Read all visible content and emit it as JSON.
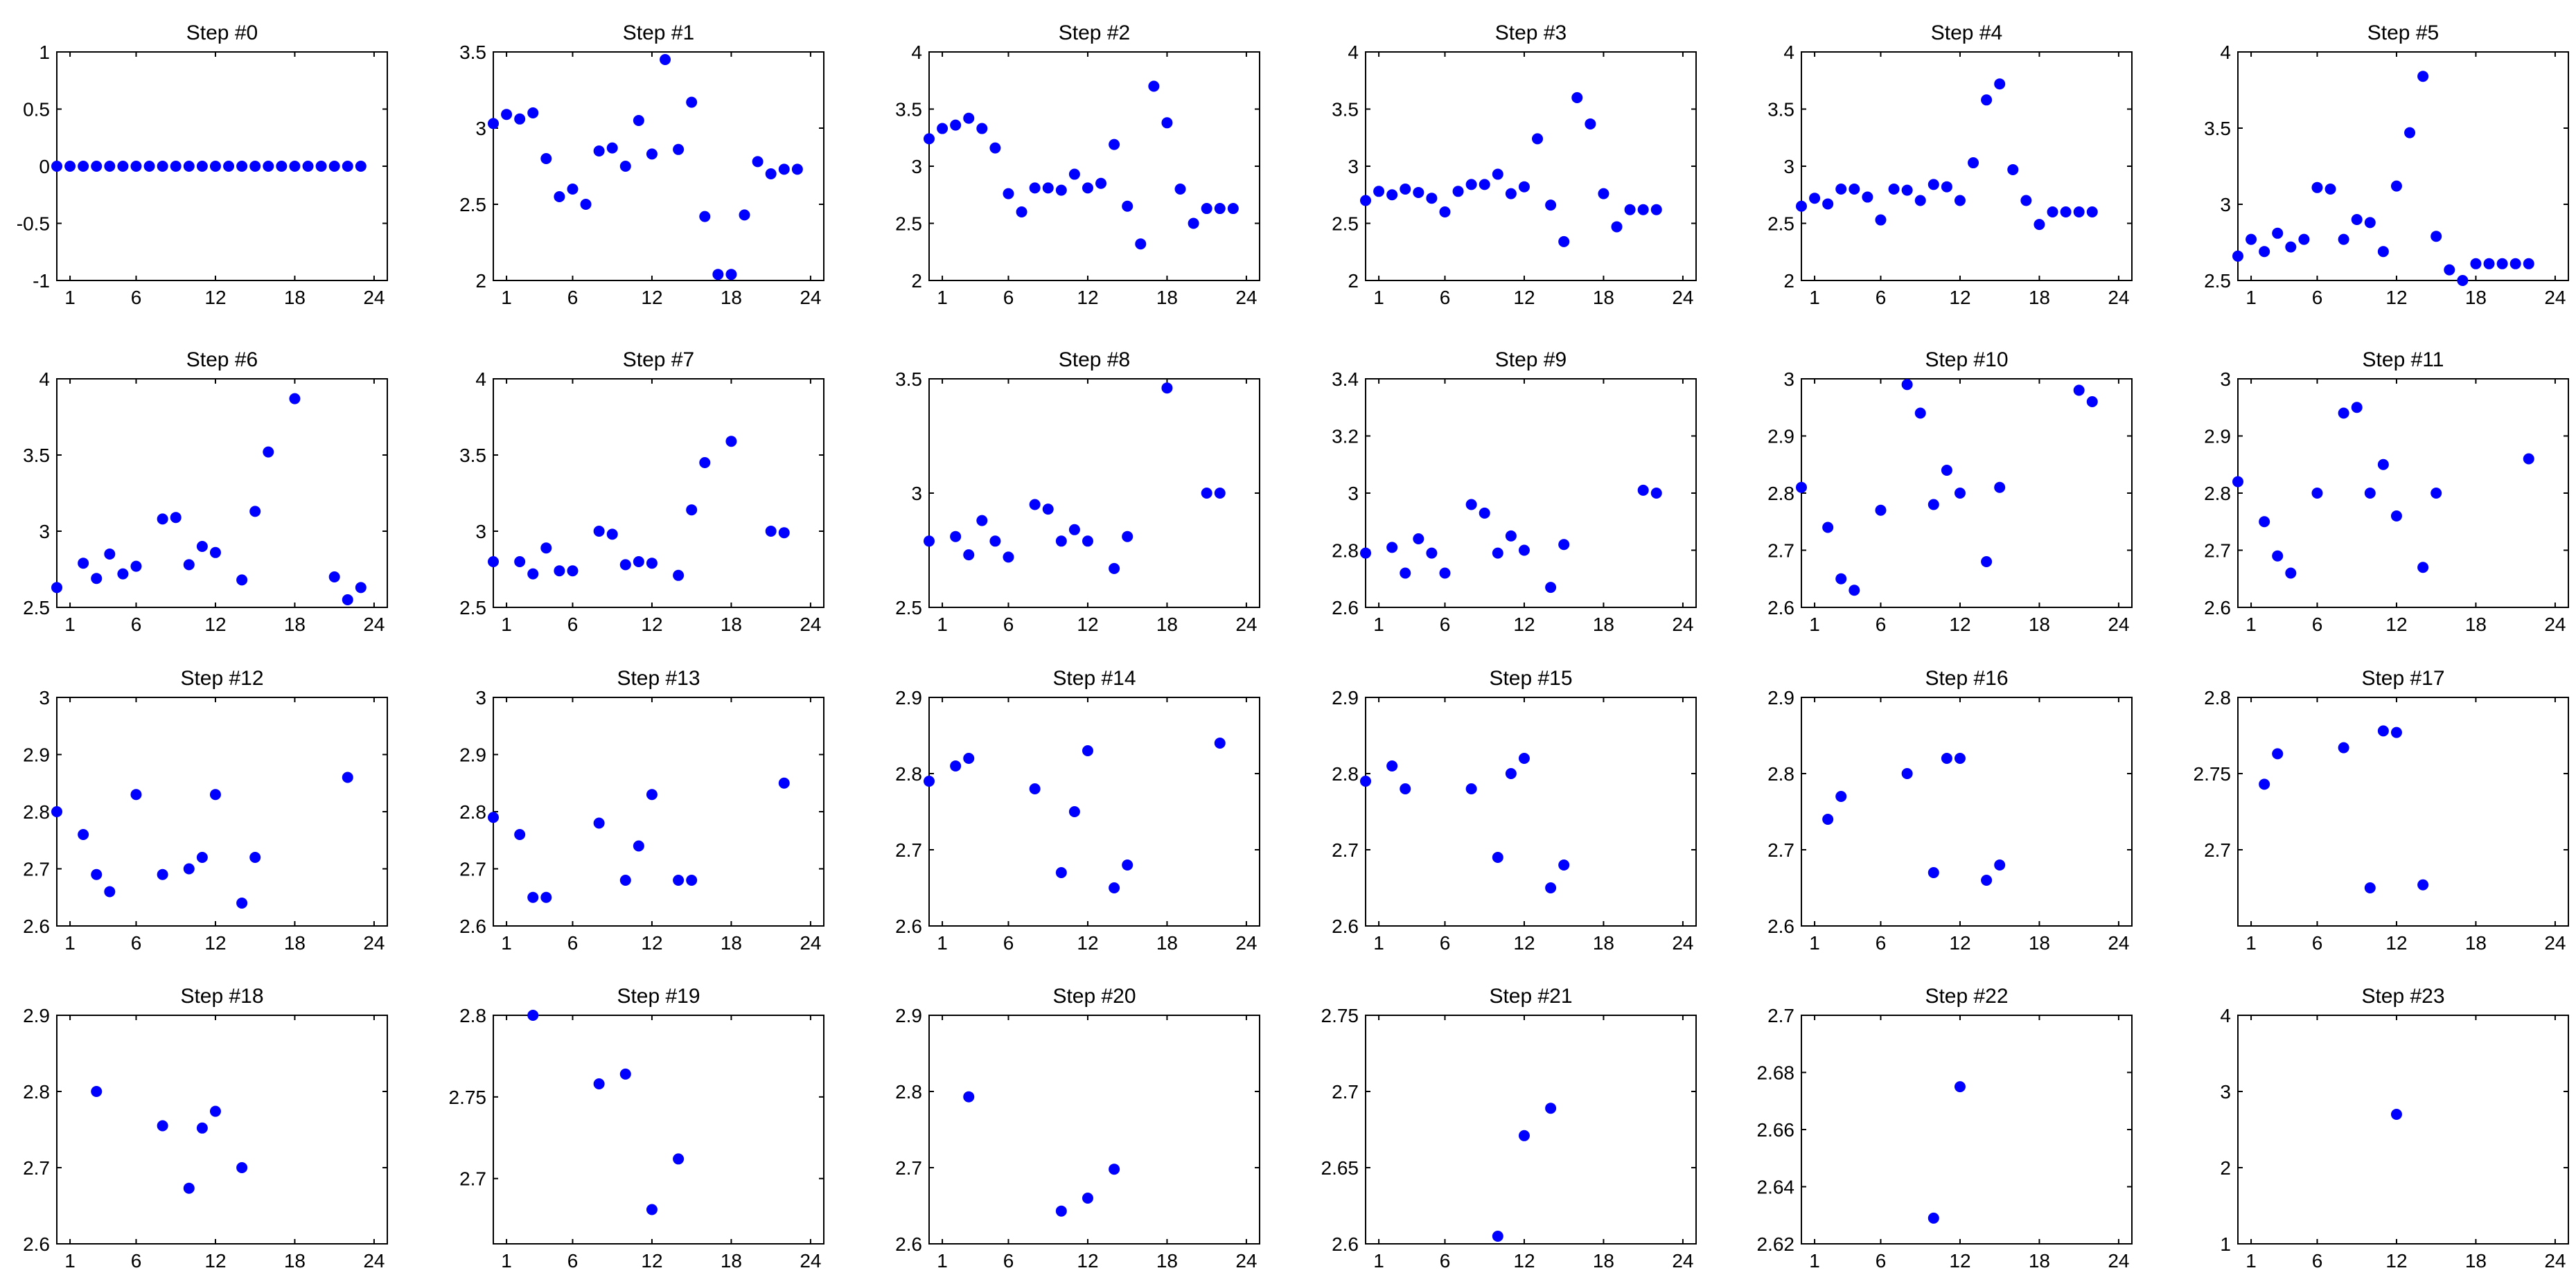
{
  "figure": {
    "rows": 4,
    "cols": 6,
    "marker_color": "#0000ff",
    "axis_color": "#000000",
    "background": "#ffffff"
  },
  "chart_data": [
    {
      "type": "scatter",
      "title": "Step #0",
      "xlim": [
        0,
        25
      ],
      "ylim": [
        -1,
        1
      ],
      "xticks": [
        "1",
        "6",
        "12",
        "18",
        "24"
      ],
      "yticks": [
        "-1",
        "-0.5",
        "0",
        "0.5",
        "1"
      ],
      "xlabel": "",
      "ylabel": "",
      "x": [
        0,
        1,
        2,
        3,
        4,
        5,
        6,
        7,
        8,
        9,
        10,
        11,
        12,
        13,
        14,
        15,
        16,
        17,
        18,
        19,
        20,
        21,
        22,
        23
      ],
      "y": [
        0,
        0,
        0,
        0,
        0,
        0,
        0,
        0,
        0,
        0,
        0,
        0,
        0,
        0,
        0,
        0,
        0,
        0,
        0,
        0,
        0,
        0,
        0,
        0
      ]
    },
    {
      "type": "scatter",
      "title": "Step #1",
      "xlim": [
        0,
        25
      ],
      "ylim": [
        2,
        3.5
      ],
      "xticks": [
        "1",
        "6",
        "12",
        "18",
        "24"
      ],
      "yticks": [
        "2",
        "2.5",
        "3",
        "3.5"
      ],
      "xlabel": "",
      "ylabel": "",
      "x": [
        0,
        1,
        2,
        3,
        4,
        5,
        6,
        7,
        8,
        9,
        10,
        11,
        12,
        13,
        14,
        15,
        16,
        17,
        18,
        19,
        20,
        21,
        22,
        23
      ],
      "y": [
        3.03,
        3.09,
        3.06,
        3.1,
        2.8,
        2.55,
        2.6,
        2.5,
        2.85,
        2.87,
        2.75,
        3.05,
        2.83,
        3.45,
        2.86,
        3.17,
        2.42,
        2.04,
        2.04,
        2.43,
        2.78,
        2.7,
        2.73,
        2.73
      ]
    },
    {
      "type": "scatter",
      "title": "Step #2",
      "xlim": [
        0,
        25
      ],
      "ylim": [
        2,
        4
      ],
      "xticks": [
        "1",
        "6",
        "12",
        "18",
        "24"
      ],
      "yticks": [
        "2",
        "2.5",
        "3",
        "3.5",
        "4"
      ],
      "xlabel": "",
      "ylabel": "",
      "x": [
        0,
        1,
        2,
        3,
        4,
        5,
        6,
        7,
        8,
        9,
        10,
        11,
        12,
        13,
        14,
        15,
        16,
        17,
        18,
        19,
        20,
        21,
        22,
        23
      ],
      "y": [
        3.24,
        3.33,
        3.36,
        3.42,
        3.33,
        3.16,
        2.76,
        2.6,
        2.81,
        2.81,
        2.79,
        2.93,
        2.81,
        2.85,
        3.19,
        2.65,
        2.32,
        3.7,
        3.38,
        2.8,
        2.5,
        2.63,
        2.63,
        2.63
      ]
    },
    {
      "type": "scatter",
      "title": "Step #3",
      "xlim": [
        0,
        25
      ],
      "ylim": [
        2,
        4
      ],
      "xticks": [
        "1",
        "6",
        "12",
        "18",
        "24"
      ],
      "yticks": [
        "2",
        "2.5",
        "3",
        "3.5",
        "4"
      ],
      "xlabel": "",
      "ylabel": "",
      "x": [
        0,
        1,
        2,
        3,
        4,
        5,
        6,
        7,
        8,
        9,
        10,
        11,
        12,
        13,
        14,
        15,
        16,
        17,
        18,
        19,
        20,
        21,
        22
      ],
      "y": [
        2.7,
        2.78,
        2.75,
        2.8,
        2.77,
        2.72,
        2.6,
        2.78,
        2.84,
        2.84,
        2.93,
        2.76,
        2.82,
        3.24,
        2.66,
        2.34,
        3.6,
        3.37,
        2.76,
        2.47,
        2.62,
        2.62,
        2.62
      ]
    },
    {
      "type": "scatter",
      "title": "Step #4",
      "xlim": [
        0,
        25
      ],
      "ylim": [
        2,
        4
      ],
      "xticks": [
        "1",
        "6",
        "12",
        "18",
        "24"
      ],
      "yticks": [
        "2",
        "2.5",
        "3",
        "3.5",
        "4"
      ],
      "xlabel": "",
      "ylabel": "",
      "x": [
        0,
        1,
        2,
        3,
        4,
        5,
        6,
        7,
        8,
        9,
        10,
        11,
        12,
        13,
        14,
        15,
        16,
        17,
        18,
        19,
        20,
        21,
        22
      ],
      "y": [
        2.65,
        2.72,
        2.67,
        2.8,
        2.8,
        2.73,
        2.53,
        2.8,
        2.79,
        2.7,
        2.84,
        2.82,
        2.7,
        3.03,
        3.58,
        3.72,
        2.97,
        2.7,
        2.49,
        2.6,
        2.6,
        2.6,
        2.6
      ]
    },
    {
      "type": "scatter",
      "title": "Step #5",
      "xlim": [
        0,
        25
      ],
      "ylim": [
        2.5,
        4
      ],
      "xticks": [
        "1",
        "6",
        "12",
        "18",
        "24"
      ],
      "yticks": [
        "2.5",
        "3",
        "3.5",
        "4"
      ],
      "xlabel": "",
      "ylabel": "",
      "x": [
        0,
        1,
        2,
        3,
        4,
        5,
        6,
        7,
        8,
        9,
        10,
        11,
        12,
        13,
        14,
        15,
        16,
        17,
        18,
        19,
        20,
        21,
        22
      ],
      "y": [
        2.66,
        2.77,
        2.69,
        2.81,
        2.72,
        2.77,
        3.11,
        3.1,
        2.77,
        2.9,
        2.88,
        2.69,
        3.12,
        3.47,
        3.84,
        2.79,
        2.57,
        2.5,
        2.61,
        2.61,
        2.61,
        2.61,
        2.61
      ]
    },
    {
      "type": "scatter",
      "title": "Step #6",
      "xlim": [
        0,
        25
      ],
      "ylim": [
        2.5,
        4
      ],
      "xticks": [
        "1",
        "6",
        "12",
        "18",
        "24"
      ],
      "yticks": [
        "2.5",
        "3",
        "3.5",
        "4"
      ],
      "xlabel": "",
      "ylabel": "",
      "x": [
        0,
        2,
        3,
        4,
        5,
        6,
        8,
        9,
        10,
        11,
        12,
        14,
        15,
        16,
        18,
        21,
        22,
        23
      ],
      "y": [
        2.63,
        2.79,
        2.69,
        2.85,
        2.72,
        2.77,
        3.08,
        3.09,
        2.78,
        2.9,
        2.86,
        2.68,
        3.13,
        3.52,
        3.87,
        2.7,
        2.55,
        2.63
      ]
    },
    {
      "type": "scatter",
      "title": "Step #7",
      "xlim": [
        0,
        25
      ],
      "ylim": [
        2.5,
        4
      ],
      "xticks": [
        "1",
        "6",
        "12",
        "18",
        "24"
      ],
      "yticks": [
        "2.5",
        "3",
        "3.5",
        "4"
      ],
      "xlabel": "",
      "ylabel": "",
      "x": [
        0,
        2,
        3,
        4,
        5,
        6,
        8,
        9,
        10,
        11,
        12,
        14,
        15,
        16,
        18,
        21,
        22
      ],
      "y": [
        2.8,
        2.8,
        2.72,
        2.89,
        2.74,
        2.74,
        3.0,
        2.98,
        2.78,
        2.8,
        2.79,
        2.71,
        3.14,
        3.45,
        3.59,
        3.0,
        2.99
      ]
    },
    {
      "type": "scatter",
      "title": "Step #8",
      "xlim": [
        0,
        25
      ],
      "ylim": [
        2.5,
        3.5
      ],
      "xticks": [
        "1",
        "6",
        "12",
        "18",
        "24"
      ],
      "yticks": [
        "2.5",
        "3",
        "3.5"
      ],
      "xlabel": "",
      "ylabel": "",
      "x": [
        0,
        2,
        3,
        4,
        5,
        6,
        8,
        9,
        10,
        11,
        12,
        14,
        15,
        18,
        21,
        22
      ],
      "y": [
        2.79,
        2.81,
        2.73,
        2.88,
        2.79,
        2.72,
        2.95,
        2.93,
        2.79,
        2.84,
        2.79,
        2.67,
        2.81,
        3.46,
        3.0,
        3.0
      ]
    },
    {
      "type": "scatter",
      "title": "Step #9",
      "xlim": [
        0,
        25
      ],
      "ylim": [
        2.6,
        3.4
      ],
      "xticks": [
        "1",
        "6",
        "12",
        "18",
        "24"
      ],
      "yticks": [
        "2.6",
        "2.8",
        "3",
        "3.2",
        "3.4"
      ],
      "xlabel": "",
      "ylabel": "",
      "x": [
        0,
        2,
        3,
        4,
        5,
        6,
        8,
        9,
        10,
        11,
        12,
        14,
        15,
        21,
        22
      ],
      "y": [
        2.79,
        2.81,
        2.72,
        2.84,
        2.79,
        2.72,
        2.96,
        2.93,
        2.79,
        2.85,
        2.8,
        2.67,
        2.82,
        3.01,
        3.0
      ]
    },
    {
      "type": "scatter",
      "title": "Step #10",
      "xlim": [
        0,
        25
      ],
      "ylim": [
        2.6,
        3
      ],
      "xticks": [
        "1",
        "6",
        "12",
        "18",
        "24"
      ],
      "yticks": [
        "2.6",
        "2.7",
        "2.8",
        "2.9",
        "3"
      ],
      "xlabel": "",
      "ylabel": "",
      "x": [
        0,
        2,
        3,
        4,
        6,
        8,
        9,
        10,
        11,
        12,
        14,
        15,
        21,
        22
      ],
      "y": [
        2.81,
        2.74,
        2.65,
        2.63,
        2.77,
        2.99,
        2.94,
        2.78,
        2.84,
        2.8,
        2.68,
        2.81,
        2.98,
        2.96
      ]
    },
    {
      "type": "scatter",
      "title": "Step #11",
      "xlim": [
        0,
        25
      ],
      "ylim": [
        2.6,
        3
      ],
      "xticks": [
        "1",
        "6",
        "12",
        "18",
        "24"
      ],
      "yticks": [
        "2.6",
        "2.7",
        "2.8",
        "2.9",
        "3"
      ],
      "xlabel": "",
      "ylabel": "",
      "x": [
        0,
        2,
        3,
        4,
        6,
        8,
        9,
        10,
        11,
        12,
        14,
        15,
        22
      ],
      "y": [
        2.82,
        2.75,
        2.69,
        2.66,
        2.8,
        2.94,
        2.95,
        2.8,
        2.85,
        2.76,
        2.67,
        2.8,
        2.86
      ]
    },
    {
      "type": "scatter",
      "title": "Step #12",
      "xlim": [
        0,
        25
      ],
      "ylim": [
        2.6,
        3
      ],
      "xticks": [
        "1",
        "6",
        "12",
        "18",
        "24"
      ],
      "yticks": [
        "2.6",
        "2.7",
        "2.8",
        "2.9",
        "3"
      ],
      "xlabel": "",
      "ylabel": "",
      "x": [
        0,
        2,
        3,
        4,
        6,
        8,
        10,
        11,
        12,
        14,
        15,
        22
      ],
      "y": [
        2.8,
        2.76,
        2.69,
        2.66,
        2.83,
        2.69,
        2.7,
        2.72,
        2.83,
        2.64,
        2.72,
        2.86
      ]
    },
    {
      "type": "scatter",
      "title": "Step #13",
      "xlim": [
        0,
        25
      ],
      "ylim": [
        2.6,
        3
      ],
      "xticks": [
        "1",
        "6",
        "12",
        "18",
        "24"
      ],
      "yticks": [
        "2.6",
        "2.7",
        "2.8",
        "2.9",
        "3"
      ],
      "xlabel": "",
      "ylabel": "",
      "x": [
        0,
        2,
        3,
        4,
        8,
        10,
        11,
        12,
        14,
        15,
        22
      ],
      "y": [
        2.79,
        2.76,
        2.65,
        2.65,
        2.78,
        2.68,
        2.74,
        2.83,
        2.68,
        2.68,
        2.85
      ]
    },
    {
      "type": "scatter",
      "title": "Step #14",
      "xlim": [
        0,
        25
      ],
      "ylim": [
        2.6,
        2.9
      ],
      "xticks": [
        "1",
        "6",
        "12",
        "18",
        "24"
      ],
      "yticks": [
        "2.6",
        "2.7",
        "2.8",
        "2.9"
      ],
      "xlabel": "",
      "ylabel": "",
      "x": [
        0,
        2,
        3,
        8,
        10,
        11,
        12,
        14,
        15,
        22
      ],
      "y": [
        2.79,
        2.81,
        2.82,
        2.78,
        2.67,
        2.75,
        2.83,
        2.65,
        2.68,
        2.84
      ]
    },
    {
      "type": "scatter",
      "title": "Step #15",
      "xlim": [
        0,
        25
      ],
      "ylim": [
        2.6,
        2.9
      ],
      "xticks": [
        "1",
        "6",
        "12",
        "18",
        "24"
      ],
      "yticks": [
        "2.6",
        "2.7",
        "2.8",
        "2.9"
      ],
      "xlabel": "",
      "ylabel": "",
      "x": [
        0,
        2,
        3,
        8,
        10,
        11,
        12,
        14,
        15
      ],
      "y": [
        2.79,
        2.81,
        2.78,
        2.78,
        2.69,
        2.8,
        2.82,
        2.65,
        2.68
      ]
    },
    {
      "type": "scatter",
      "title": "Step #16",
      "xlim": [
        0,
        25
      ],
      "ylim": [
        2.6,
        2.9
      ],
      "xticks": [
        "1",
        "6",
        "12",
        "18",
        "24"
      ],
      "yticks": [
        "2.6",
        "2.7",
        "2.8",
        "2.9"
      ],
      "xlabel": "",
      "ylabel": "",
      "x": [
        2,
        3,
        8,
        10,
        11,
        12,
        14,
        15
      ],
      "y": [
        2.74,
        2.77,
        2.8,
        2.67,
        2.82,
        2.82,
        2.66,
        2.68
      ]
    },
    {
      "type": "scatter",
      "title": "Step #17",
      "xlim": [
        0,
        25
      ],
      "ylim": [
        2.65,
        2.8
      ],
      "xticks": [
        "1",
        "6",
        "12",
        "18",
        "24"
      ],
      "yticks": [
        "2.7",
        "2.75",
        "2.8"
      ],
      "xlabel": "",
      "ylabel": "",
      "x": [
        2,
        3,
        8,
        10,
        11,
        12,
        14
      ],
      "y": [
        2.743,
        2.763,
        2.767,
        2.675,
        2.778,
        2.777,
        2.677
      ]
    },
    {
      "type": "scatter",
      "title": "Step #18",
      "xlim": [
        0,
        25
      ],
      "ylim": [
        2.6,
        2.9
      ],
      "xticks": [
        "1",
        "6",
        "12",
        "18",
        "24"
      ],
      "yticks": [
        "2.6",
        "2.7",
        "2.8",
        "2.9"
      ],
      "xlabel": "",
      "ylabel": "",
      "x": [
        3,
        8,
        10,
        11,
        12,
        14
      ],
      "y": [
        2.8,
        2.755,
        2.673,
        2.752,
        2.774,
        2.7
      ]
    },
    {
      "type": "scatter",
      "title": "Step #19",
      "xlim": [
        0,
        25
      ],
      "ylim": [
        2.66,
        2.8
      ],
      "xticks": [
        "1",
        "6",
        "12",
        "18",
        "24"
      ],
      "yticks": [
        "2.7",
        "2.75",
        "2.8"
      ],
      "xlabel": "",
      "ylabel": "",
      "x": [
        3,
        8,
        10,
        12,
        14
      ],
      "y": [
        2.8,
        2.758,
        2.764,
        2.681,
        2.712
      ]
    },
    {
      "type": "scatter",
      "title": "Step #20",
      "xlim": [
        0,
        25
      ],
      "ylim": [
        2.6,
        2.9
      ],
      "xticks": [
        "1",
        "6",
        "12",
        "18",
        "24"
      ],
      "yticks": [
        "2.6",
        "2.7",
        "2.8",
        "2.9"
      ],
      "xlabel": "",
      "ylabel": "",
      "x": [
        3,
        10,
        12,
        14
      ],
      "y": [
        2.793,
        2.643,
        2.66,
        2.698
      ]
    },
    {
      "type": "scatter",
      "title": "Step #21",
      "xlim": [
        0,
        25
      ],
      "ylim": [
        2.6,
        2.75
      ],
      "xticks": [
        "1",
        "6",
        "12",
        "18",
        "24"
      ],
      "yticks": [
        "2.6",
        "2.65",
        "2.7",
        "2.75"
      ],
      "xlabel": "",
      "ylabel": "",
      "x": [
        10,
        12,
        14
      ],
      "y": [
        2.605,
        2.671,
        2.689
      ]
    },
    {
      "type": "scatter",
      "title": "Step #22",
      "xlim": [
        0,
        25
      ],
      "ylim": [
        2.62,
        2.7
      ],
      "xticks": [
        "1",
        "6",
        "12",
        "18",
        "24"
      ],
      "yticks": [
        "2.62",
        "2.64",
        "2.66",
        "2.68",
        "2.7"
      ],
      "xlabel": "",
      "ylabel": "",
      "x": [
        10,
        12
      ],
      "y": [
        2.629,
        2.675
      ]
    },
    {
      "type": "scatter",
      "title": "Step #23",
      "xlim": [
        0,
        25
      ],
      "ylim": [
        1,
        4
      ],
      "xticks": [
        "1",
        "6",
        "12",
        "18",
        "24"
      ],
      "yticks": [
        "1",
        "2",
        "3",
        "4"
      ],
      "xlabel": "",
      "ylabel": "",
      "x": [
        12
      ],
      "y": [
        2.7
      ]
    }
  ]
}
